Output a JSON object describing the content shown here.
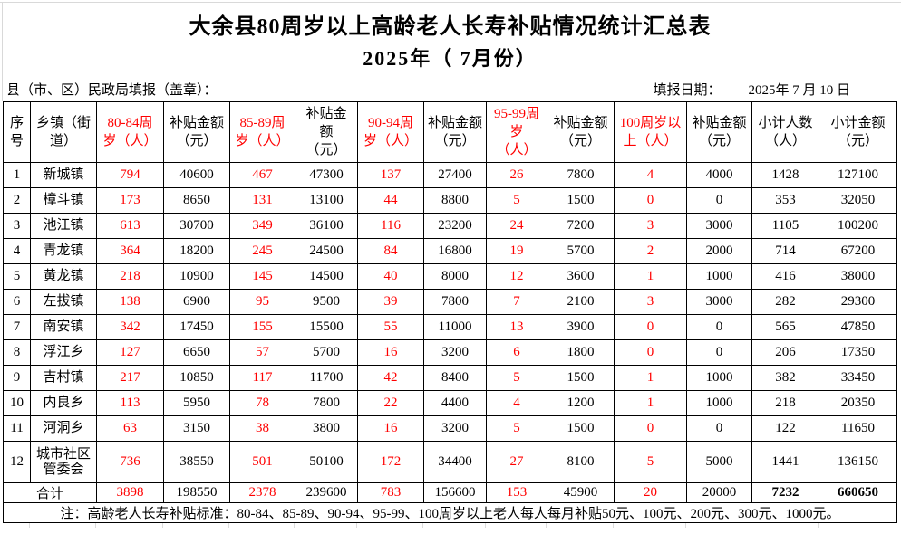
{
  "title": "大余县80周岁以上高龄老人长寿补贴情况统计汇总表",
  "subtitle": "2025年（ 7月份）",
  "meta": {
    "agency_label": "县（市、区）民政局填报（盖章）：",
    "date_label": "填报日期：",
    "date_value": "2025年 7 月 10  日"
  },
  "colors": {
    "red": "#FF0000",
    "text": "#000000",
    "border": "#000000",
    "grid_light": "#D9D9D9"
  },
  "table": {
    "headers": [
      {
        "label": "序号",
        "red": false
      },
      {
        "label": "乡镇（街\n道）",
        "red": false
      },
      {
        "label": "80-84周\n岁（人）",
        "red": true
      },
      {
        "label": "补贴金额\n（元）",
        "red": false
      },
      {
        "label": "85-89周\n岁（人）",
        "red": true
      },
      {
        "label": "补贴金\n额\n（元）",
        "red": false
      },
      {
        "label": "90-94周\n岁（人）",
        "red": true
      },
      {
        "label": "补贴金额\n（元）",
        "red": false
      },
      {
        "label": "95-99周\n岁\n（人）",
        "red": true
      },
      {
        "label": "补贴金额\n（元）",
        "red": false
      },
      {
        "label": "100周岁以\n上（人）",
        "red": true
      },
      {
        "label": "补贴金额\n（元）",
        "red": false
      },
      {
        "label": "小计人数\n（人）",
        "red": false
      },
      {
        "label": "小计金额\n（元）",
        "red": false
      }
    ],
    "rows": [
      {
        "no": "1",
        "town": "新城镇",
        "values": [
          "794",
          "40600",
          "467",
          "47300",
          "137",
          "27400",
          "26",
          "7800",
          "4",
          "4000",
          "1428",
          "127100"
        ]
      },
      {
        "no": "2",
        "town": "樟斗镇",
        "values": [
          "173",
          "8650",
          "131",
          "13100",
          "44",
          "8800",
          "5",
          "1500",
          "0",
          "0",
          "353",
          "32050"
        ]
      },
      {
        "no": "3",
        "town": "池江镇",
        "values": [
          "613",
          "30700",
          "349",
          "36100",
          "116",
          "23200",
          "24",
          "7200",
          "3",
          "3000",
          "1105",
          "100200"
        ]
      },
      {
        "no": "4",
        "town": "青龙镇",
        "values": [
          "364",
          "18200",
          "245",
          "24500",
          "84",
          "16800",
          "19",
          "5700",
          "2",
          "2000",
          "714",
          "67200"
        ]
      },
      {
        "no": "5",
        "town": "黄龙镇",
        "values": [
          "218",
          "10900",
          "145",
          "14500",
          "40",
          "8000",
          "12",
          "3600",
          "1",
          "1000",
          "416",
          "38000"
        ]
      },
      {
        "no": "6",
        "town": "左拔镇",
        "values": [
          "138",
          "6900",
          "95",
          "9500",
          "39",
          "7800",
          "7",
          "2100",
          "3",
          "3000",
          "282",
          "29300"
        ]
      },
      {
        "no": "7",
        "town": "南安镇",
        "values": [
          "342",
          "17450",
          "155",
          "15500",
          "55",
          "11000",
          "13",
          "3900",
          "0",
          "0",
          "565",
          "47850"
        ]
      },
      {
        "no": "8",
        "town": "浮江乡",
        "values": [
          "127",
          "6650",
          "57",
          "5700",
          "16",
          "3200",
          "6",
          "1800",
          "0",
          "0",
          "206",
          "17350"
        ]
      },
      {
        "no": "9",
        "town": "吉村镇",
        "values": [
          "217",
          "10850",
          "117",
          "11700",
          "42",
          "8400",
          "5",
          "1500",
          "1",
          "1000",
          "382",
          "33450"
        ]
      },
      {
        "no": "10",
        "town": "内良乡",
        "values": [
          "113",
          "5950",
          "78",
          "7800",
          "22",
          "4400",
          "4",
          "1200",
          "1",
          "1000",
          "218",
          "20350"
        ]
      },
      {
        "no": "11",
        "town": "河洞乡",
        "values": [
          "63",
          "3150",
          "38",
          "3800",
          "16",
          "3200",
          "5",
          "1500",
          "0",
          "0",
          "122",
          "11650"
        ]
      },
      {
        "no": "12",
        "town": "城市社区\n管委会",
        "values": [
          "736",
          "38550",
          "501",
          "50100",
          "172",
          "34400",
          "27",
          "8100",
          "5",
          "5000",
          "1441",
          "136150"
        ]
      }
    ],
    "total_label": "合计",
    "total_values": [
      "3898",
      "198550",
      "2378",
      "239600",
      "783",
      "156600",
      "153",
      "45900",
      "20",
      "20000",
      "7232",
      "660650"
    ],
    "note": "注：高龄老人长寿补贴标准：80-84、85-89、90-94、95-99、100周岁以上老人每人每月补贴50元、100元、200元、300元、1000元。"
  }
}
